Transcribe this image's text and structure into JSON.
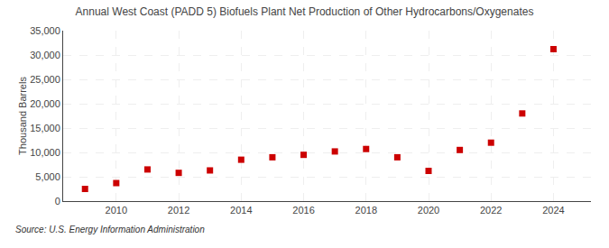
{
  "chart_data": {
    "type": "scatter",
    "title": "Annual West Coast (PADD 5) Biofuels Plant Net Production of Other Hydrocarbons/Oxygenates",
    "ylabel": "Thousand Barrels",
    "annotations": [
      "Source: U.S. Energy Information Administration"
    ],
    "x": [
      2009,
      2010,
      2011,
      2012,
      2013,
      2014,
      2015,
      2016,
      2017,
      2018,
      2019,
      2020,
      2021,
      2022,
      2023,
      2024
    ],
    "values": [
      2500,
      3700,
      6500,
      5800,
      6300,
      8500,
      9000,
      9500,
      10200,
      10700,
      9000,
      6200,
      10500,
      12000,
      18000,
      31200
    ],
    "color": "#cc0000",
    "marker": "square",
    "xlim": [
      2008.3,
      2025.2
    ],
    "xticks": [
      2010,
      2012,
      2014,
      2016,
      2018,
      2020,
      2022,
      2024
    ],
    "ylim": [
      0,
      35000
    ],
    "yticks": [
      0,
      {
        "value": 5000,
        "label": "5,000"
      },
      {
        "value": 10000,
        "label": "10,000"
      },
      {
        "value": 15000,
        "label": "15,000"
      },
      {
        "value": 20000,
        "label": "20,000"
      },
      {
        "value": 25000,
        "label": "25,000"
      },
      {
        "value": 30000,
        "label": "30,000"
      },
      {
        "value": 35000,
        "label": "35,000"
      }
    ],
    "grid": true
  }
}
